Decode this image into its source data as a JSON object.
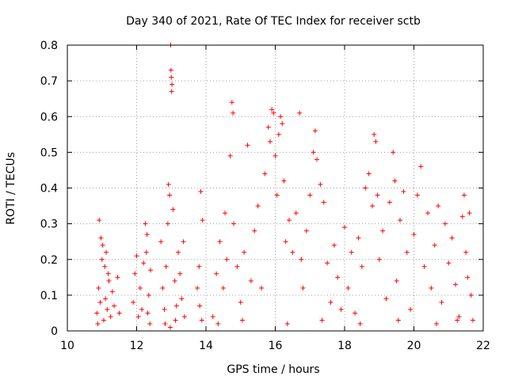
{
  "chart_data": {
    "type": "scatter",
    "title": "Day 340 of 2021, Rate Of TEC Index for receiver sctb",
    "xlabel": "GPS time / hours",
    "ylabel": "ROTI / TECUs",
    "xlim": [
      10,
      22
    ],
    "ylim": [
      0,
      0.8
    ],
    "x_ticks": [
      "10",
      "12",
      "14",
      "16",
      "18",
      "20",
      "22"
    ],
    "y_ticks": [
      "0",
      "0.1",
      "0.2",
      "0.3",
      "0.4",
      "0.5",
      "0.6",
      "0.7",
      "0.8"
    ],
    "grid": true,
    "marker": "+",
    "color": "#ff0000",
    "series": [
      {
        "points": [
          [
            10.85,
            0.05
          ],
          [
            10.9,
            0.12
          ],
          [
            10.95,
            0.08
          ],
          [
            11.0,
            0.2
          ],
          [
            11.05,
            0.03
          ],
          [
            10.92,
            0.31
          ],
          [
            10.97,
            0.26
          ],
          [
            11.02,
            0.24
          ],
          [
            11.08,
            0.18
          ],
          [
            11.1,
            0.09
          ],
          [
            11.15,
            0.06
          ],
          [
            11.2,
            0.14
          ],
          [
            11.25,
            0.04
          ],
          [
            11.3,
            0.11
          ],
          [
            11.35,
            0.07
          ],
          [
            11.45,
            0.15
          ],
          [
            11.5,
            0.05
          ],
          [
            10.88,
            0.02
          ],
          [
            11.12,
            0.22
          ],
          [
            11.18,
            0.16
          ],
          [
            11.9,
            0.08
          ],
          [
            11.95,
            0.16
          ],
          [
            12.0,
            0.21
          ],
          [
            12.05,
            0.04
          ],
          [
            12.1,
            0.12
          ],
          [
            12.25,
            0.3
          ],
          [
            12.3,
            0.27
          ],
          [
            12.28,
            0.22
          ],
          [
            12.35,
            0.1
          ],
          [
            12.32,
            0.05
          ],
          [
            12.4,
            0.17
          ],
          [
            12.2,
            0.19
          ],
          [
            12.15,
            0.06
          ],
          [
            12.38,
            0.02
          ],
          [
            12.7,
            0.25
          ],
          [
            12.75,
            0.12
          ],
          [
            12.8,
            0.06
          ],
          [
            12.85,
            0.18
          ],
          [
            12.9,
            0.3
          ],
          [
            12.92,
            0.41
          ],
          [
            12.95,
            0.38
          ],
          [
            12.98,
            0.8
          ],
          [
            12.99,
            0.73
          ],
          [
            13.0,
            0.71
          ],
          [
            13.02,
            0.69
          ],
          [
            13.01,
            0.67
          ],
          [
            13.05,
            0.34
          ],
          [
            13.1,
            0.14
          ],
          [
            13.15,
            0.07
          ],
          [
            13.2,
            0.22
          ],
          [
            13.25,
            0.16
          ],
          [
            13.3,
            0.09
          ],
          [
            13.35,
            0.25
          ],
          [
            13.38,
            0.04
          ],
          [
            12.82,
            0.02
          ],
          [
            12.97,
            0.01
          ],
          [
            13.12,
            0.03
          ],
          [
            13.75,
            0.12
          ],
          [
            13.8,
            0.18
          ],
          [
            13.85,
            0.39
          ],
          [
            13.9,
            0.31
          ],
          [
            13.88,
            0.03
          ],
          [
            13.82,
            0.07
          ],
          [
            14.2,
            0.04
          ],
          [
            14.3,
            0.16
          ],
          [
            14.4,
            0.25
          ],
          [
            14.5,
            0.12
          ],
          [
            14.55,
            0.33
          ],
          [
            14.6,
            0.2
          ],
          [
            14.7,
            0.49
          ],
          [
            14.75,
            0.64
          ],
          [
            14.78,
            0.61
          ],
          [
            14.8,
            0.3
          ],
          [
            14.9,
            0.18
          ],
          [
            15.0,
            0.08
          ],
          [
            15.1,
            0.22
          ],
          [
            15.2,
            0.52
          ],
          [
            15.3,
            0.14
          ],
          [
            15.4,
            0.28
          ],
          [
            15.5,
            0.35
          ],
          [
            15.6,
            0.12
          ],
          [
            15.7,
            0.44
          ],
          [
            15.8,
            0.57
          ],
          [
            15.85,
            0.53
          ],
          [
            15.9,
            0.62
          ],
          [
            15.95,
            0.61
          ],
          [
            16.0,
            0.49
          ],
          [
            16.05,
            0.38
          ],
          [
            16.1,
            0.55
          ],
          [
            16.15,
            0.6
          ],
          [
            16.2,
            0.58
          ],
          [
            16.25,
            0.42
          ],
          [
            16.3,
            0.25
          ],
          [
            16.4,
            0.31
          ],
          [
            16.5,
            0.22
          ],
          [
            16.6,
            0.33
          ],
          [
            16.7,
            0.61
          ],
          [
            16.75,
            0.2
          ],
          [
            16.8,
            0.12
          ],
          [
            16.9,
            0.28
          ],
          [
            17.0,
            0.38
          ],
          [
            17.1,
            0.5
          ],
          [
            17.15,
            0.56
          ],
          [
            17.2,
            0.48
          ],
          [
            17.3,
            0.41
          ],
          [
            17.4,
            0.36
          ],
          [
            17.5,
            0.19
          ],
          [
            17.6,
            0.08
          ],
          [
            17.7,
            0.24
          ],
          [
            17.8,
            0.15
          ],
          [
            17.9,
            0.06
          ],
          [
            18.0,
            0.29
          ],
          [
            18.1,
            0.12
          ],
          [
            18.2,
            0.22
          ],
          [
            18.3,
            0.05
          ],
          [
            18.4,
            0.26
          ],
          [
            18.5,
            0.18
          ],
          [
            18.6,
            0.4
          ],
          [
            18.7,
            0.44
          ],
          [
            18.8,
            0.35
          ],
          [
            18.85,
            0.55
          ],
          [
            18.9,
            0.53
          ],
          [
            18.95,
            0.38
          ],
          [
            19.0,
            0.2
          ],
          [
            19.1,
            0.28
          ],
          [
            19.2,
            0.09
          ],
          [
            19.3,
            0.36
          ],
          [
            19.4,
            0.5
          ],
          [
            19.45,
            0.42
          ],
          [
            19.5,
            0.14
          ],
          [
            19.6,
            0.31
          ],
          [
            19.7,
            0.39
          ],
          [
            19.8,
            0.22
          ],
          [
            19.9,
            0.06
          ],
          [
            20.0,
            0.27
          ],
          [
            20.1,
            0.38
          ],
          [
            20.2,
            0.46
          ],
          [
            20.3,
            0.18
          ],
          [
            20.4,
            0.33
          ],
          [
            20.5,
            0.12
          ],
          [
            20.6,
            0.24
          ],
          [
            20.7,
            0.35
          ],
          [
            20.8,
            0.08
          ],
          [
            20.9,
            0.3
          ],
          [
            21.0,
            0.19
          ],
          [
            21.1,
            0.26
          ],
          [
            21.2,
            0.13
          ],
          [
            21.3,
            0.04
          ],
          [
            21.4,
            0.32
          ],
          [
            21.45,
            0.38
          ],
          [
            21.5,
            0.22
          ],
          [
            21.55,
            0.15
          ],
          [
            21.6,
            0.33
          ],
          [
            21.65,
            0.1
          ],
          [
            21.7,
            0.03
          ],
          [
            14.35,
            0.02
          ],
          [
            15.05,
            0.03
          ],
          [
            16.35,
            0.02
          ],
          [
            17.35,
            0.03
          ],
          [
            18.45,
            0.02
          ],
          [
            19.55,
            0.03
          ],
          [
            20.65,
            0.02
          ],
          [
            21.25,
            0.03
          ]
        ]
      }
    ]
  }
}
